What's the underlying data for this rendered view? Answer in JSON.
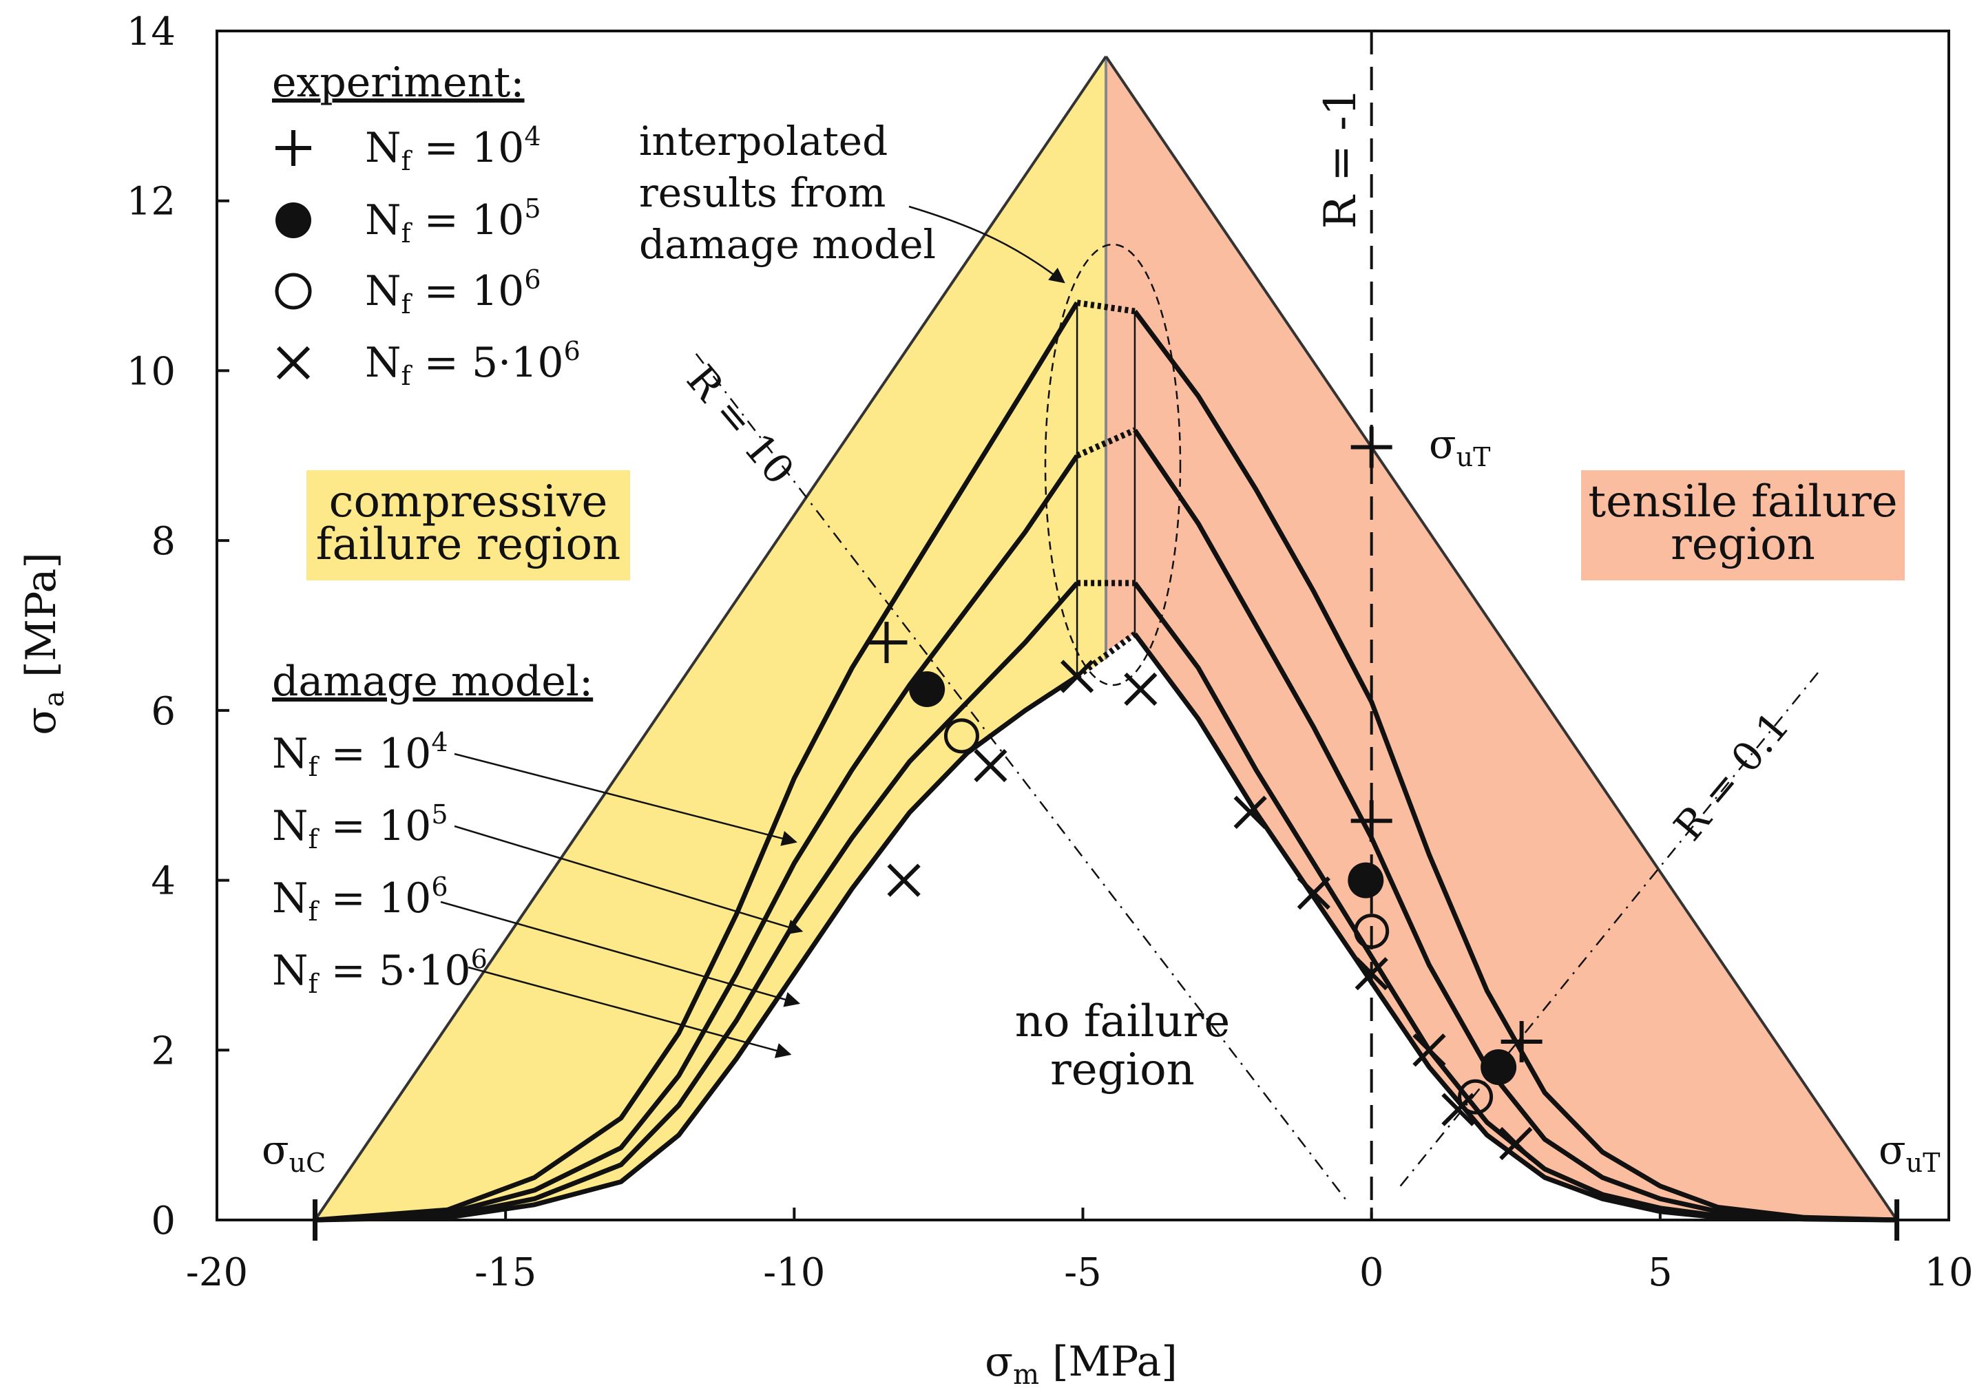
{
  "chart_data": {
    "type": "line",
    "title": "",
    "xlabel": {
      "symbol": "σ",
      "sub": "m",
      "unit": "[MPa]"
    },
    "ylabel": {
      "symbol": "σ",
      "sub": "a",
      "unit": "[MPa]"
    },
    "xlim": [
      -20,
      10
    ],
    "ylim": [
      0,
      14
    ],
    "xticks": [
      -20,
      -15,
      -10,
      -5,
      0,
      5,
      10
    ],
    "yticks": [
      0,
      2,
      4,
      6,
      8,
      10,
      12,
      14
    ],
    "sigma_uC": -18.3,
    "sigma_uT": 9.1,
    "apex": [
      -4.6,
      13.7
    ],
    "marker_labels": {
      "suC": {
        "symbol": "σ",
        "sub": "uC"
      },
      "suT": {
        "symbol": "σ",
        "sub": "uT"
      }
    },
    "legend": {
      "experiment_title": "experiment:",
      "experiment_items": [
        {
          "marker": "plus",
          "text": "N",
          "sub": "f",
          "rest": " = 10",
          "sup": "4"
        },
        {
          "marker": "filled-circle",
          "text": "N",
          "sub": "f",
          "rest": " = 10",
          "sup": "5"
        },
        {
          "marker": "open-circle",
          "text": "N",
          "sub": "f",
          "rest": " = 10",
          "sup": "6"
        },
        {
          "marker": "cross",
          "text": "N",
          "sub": "f",
          "rest": " = 5·10",
          "sup": "6"
        }
      ],
      "model_title": "damage model:",
      "model_items": [
        {
          "text": "N",
          "sub": "f",
          "rest": " = 10",
          "sup": "4"
        },
        {
          "text": "N",
          "sub": "f",
          "rest": " = 10",
          "sup": "5"
        },
        {
          "text": "N",
          "sub": "f",
          "rest": " = 10",
          "sup": "6"
        },
        {
          "text": "N",
          "sub": "f",
          "rest": " = 5·10",
          "sup": "6"
        }
      ]
    },
    "region_labels": {
      "compressive": [
        "compressive",
        "failure region"
      ],
      "tensile": [
        "tensile failure",
        "region"
      ],
      "no_failure": [
        "no failure",
        "region"
      ]
    },
    "annotations": {
      "interpolated": [
        "interpolated",
        "results from",
        "damage model"
      ],
      "R_minus1": "R = -1",
      "R_10": "R = 10",
      "R_01": "R = 0.1"
    },
    "colors": {
      "compressive": "#fde88a",
      "tensile": "#fbbda0",
      "compressive_label_bg": "#fde88a",
      "tensile_label_bg": "#fbbda0",
      "line": "#111111"
    },
    "series_left": [
      {
        "name": "Nf=10^4",
        "points": [
          [
            -18.3,
            0
          ],
          [
            -16,
            0.12
          ],
          [
            -14.5,
            0.5
          ],
          [
            -13,
            1.2
          ],
          [
            -12,
            2.2
          ],
          [
            -11,
            3.6
          ],
          [
            -10,
            5.2
          ],
          [
            -9,
            6.5
          ],
          [
            -8,
            7.6
          ],
          [
            -7,
            8.7
          ],
          [
            -6,
            9.8
          ],
          [
            -5.1,
            10.8
          ]
        ]
      },
      {
        "name": "Nf=10^5",
        "points": [
          [
            -18.3,
            0
          ],
          [
            -16,
            0.08
          ],
          [
            -14.5,
            0.35
          ],
          [
            -13,
            0.85
          ],
          [
            -12,
            1.7
          ],
          [
            -11,
            2.9
          ],
          [
            -10,
            4.2
          ],
          [
            -9,
            5.3
          ],
          [
            -8,
            6.3
          ],
          [
            -7,
            7.2
          ],
          [
            -6,
            8.1
          ],
          [
            -5.1,
            9.0
          ]
        ]
      },
      {
        "name": "Nf=10^6",
        "points": [
          [
            -18.3,
            0
          ],
          [
            -16,
            0.05
          ],
          [
            -14.5,
            0.25
          ],
          [
            -13,
            0.65
          ],
          [
            -12,
            1.35
          ],
          [
            -11,
            2.35
          ],
          [
            -10,
            3.5
          ],
          [
            -9,
            4.5
          ],
          [
            -8,
            5.4
          ],
          [
            -7,
            6.1
          ],
          [
            -6,
            6.8
          ],
          [
            -5.1,
            7.5
          ]
        ]
      },
      {
        "name": "Nf=5·10^6",
        "points": [
          [
            -18.3,
            0
          ],
          [
            -16,
            0.03
          ],
          [
            -14.5,
            0.18
          ],
          [
            -13,
            0.45
          ],
          [
            -12,
            1.0
          ],
          [
            -11,
            1.9
          ],
          [
            -10,
            2.9
          ],
          [
            -9,
            3.9
          ],
          [
            -8,
            4.8
          ],
          [
            -7,
            5.5
          ],
          [
            -6,
            6.0
          ],
          [
            -5.1,
            6.4
          ]
        ]
      }
    ],
    "series_right": [
      {
        "name": "Nf=10^4",
        "points": [
          [
            -4.1,
            10.7
          ],
          [
            -3,
            9.7
          ],
          [
            -2,
            8.6
          ],
          [
            -1,
            7.4
          ],
          [
            0,
            6.1
          ],
          [
            1,
            4.3
          ],
          [
            2,
            2.7
          ],
          [
            3,
            1.5
          ],
          [
            4,
            0.8
          ],
          [
            5,
            0.4
          ],
          [
            6,
            0.15
          ],
          [
            7.5,
            0.03
          ],
          [
            9.1,
            0
          ]
        ]
      },
      {
        "name": "Nf=10^5",
        "points": [
          [
            -4.1,
            9.3
          ],
          [
            -3,
            8.2
          ],
          [
            -2,
            7.0
          ],
          [
            -1,
            5.8
          ],
          [
            0,
            4.5
          ],
          [
            1,
            3.0
          ],
          [
            2,
            1.8
          ],
          [
            3,
            0.95
          ],
          [
            4,
            0.5
          ],
          [
            5,
            0.25
          ],
          [
            6,
            0.1
          ],
          [
            7.5,
            0.02
          ],
          [
            9.1,
            0
          ]
        ]
      },
      {
        "name": "Nf=10^6",
        "points": [
          [
            -4.1,
            7.5
          ],
          [
            -3,
            6.5
          ],
          [
            -2,
            5.3
          ],
          [
            -1,
            4.2
          ],
          [
            0,
            3.1
          ],
          [
            1,
            2.0
          ],
          [
            2,
            1.15
          ],
          [
            3,
            0.6
          ],
          [
            4,
            0.3
          ],
          [
            5,
            0.14
          ],
          [
            6,
            0.05
          ],
          [
            7.5,
            0.01
          ],
          [
            9.1,
            0
          ]
        ]
      },
      {
        "name": "Nf=5·10^6",
        "points": [
          [
            -4.1,
            6.9
          ],
          [
            -3,
            5.9
          ],
          [
            -2,
            4.8
          ],
          [
            -1,
            3.8
          ],
          [
            0,
            2.8
          ],
          [
            1,
            1.8
          ],
          [
            2,
            1.0
          ],
          [
            3,
            0.5
          ],
          [
            4,
            0.25
          ],
          [
            5,
            0.1
          ],
          [
            6,
            0.03
          ],
          [
            9.1,
            0
          ]
        ]
      }
    ],
    "experiment_points": [
      {
        "marker": "plus",
        "x": -8.4,
        "y": 6.8
      },
      {
        "marker": "plus",
        "x": 0,
        "y": 9.1
      },
      {
        "marker": "plus",
        "x": 0,
        "y": 4.7
      },
      {
        "marker": "plus",
        "x": 2.6,
        "y": 2.1
      },
      {
        "marker": "filled-circle",
        "x": -7.7,
        "y": 6.25
      },
      {
        "marker": "filled-circle",
        "x": -0.1,
        "y": 4.0
      },
      {
        "marker": "filled-circle",
        "x": 2.2,
        "y": 1.8
      },
      {
        "marker": "open-circle",
        "x": -7.1,
        "y": 5.7
      },
      {
        "marker": "open-circle",
        "x": 0,
        "y": 3.4
      },
      {
        "marker": "open-circle",
        "x": 1.8,
        "y": 1.45
      },
      {
        "marker": "cross",
        "x": -6.6,
        "y": 5.35
      },
      {
        "marker": "cross",
        "x": -8.1,
        "y": 4.0
      },
      {
        "marker": "cross",
        "x": -5.1,
        "y": 6.4
      },
      {
        "marker": "cross",
        "x": -4.0,
        "y": 6.25
      },
      {
        "marker": "cross",
        "x": -2.1,
        "y": 4.8
      },
      {
        "marker": "cross",
        "x": -1.0,
        "y": 3.85
      },
      {
        "marker": "cross",
        "x": 0,
        "y": 2.9
      },
      {
        "marker": "cross",
        "x": 1.0,
        "y": 2.0
      },
      {
        "marker": "cross",
        "x": 1.5,
        "y": 1.3
      },
      {
        "marker": "cross",
        "x": 2.5,
        "y": 0.9
      }
    ]
  }
}
